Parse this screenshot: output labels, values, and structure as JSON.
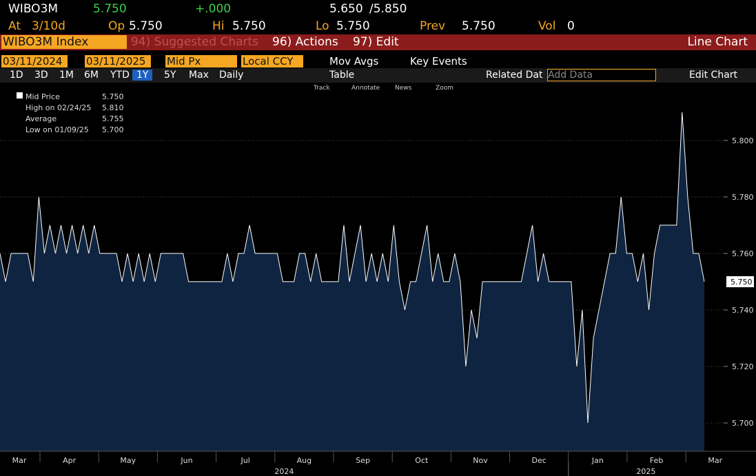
{
  "header": {
    "ticker": "WIBO3M",
    "last": "5.750",
    "change": "+.000",
    "bid": "5.650",
    "ask": "/5.850",
    "at_label": "At",
    "at_value": "3/10d",
    "open_label": "Op",
    "open": "5.750",
    "high_label": "Hi",
    "high": "5.750",
    "low_label": "Lo",
    "low": "5.750",
    "prev_label": "Prev",
    "prev": "5.750",
    "vol_label": "Vol",
    "vol": "0"
  },
  "toolbar": {
    "security": "WIBO3M Index",
    "suggested": "94) Suggested Charts",
    "actions": "96) Actions",
    "edit": "97) Edit",
    "chart_type": "Line Chart"
  },
  "controls": {
    "start_date": "03/11/2024",
    "end_date": "03/11/2025",
    "field": "Mid Px",
    "currency": "Local CCY",
    "mov_avgs": "Mov Avgs",
    "key_events": "Key Events",
    "ranges": [
      "1D",
      "3D",
      "1M",
      "6M",
      "YTD",
      "1Y",
      "5Y",
      "Max"
    ],
    "periodicity": "Daily",
    "table": "Table",
    "related": "Related Dat",
    "add_data": "Add Data",
    "edit_chart": "Edit Chart",
    "tools": [
      "Track",
      "Annotate",
      "News",
      "Zoom"
    ]
  },
  "chart_data": {
    "type": "line",
    "color": "#ffffff",
    "area_color": "#0f2440",
    "grid": true,
    "values": [
      5.76,
      5.75,
      5.76,
      5.76,
      5.76,
      5.76,
      5.75,
      5.78,
      5.76,
      5.77,
      5.76,
      5.77,
      5.76,
      5.77,
      5.76,
      5.77,
      5.76,
      5.77,
      5.76,
      5.76,
      5.76,
      5.76,
      5.75,
      5.76,
      5.75,
      5.76,
      5.75,
      5.76,
      5.75,
      5.76,
      5.76,
      5.76,
      5.76,
      5.76,
      5.75,
      5.75,
      5.75,
      5.75,
      5.75,
      5.75,
      5.75,
      5.76,
      5.75,
      5.76,
      5.76,
      5.77,
      5.76,
      5.76,
      5.76,
      5.76,
      5.76,
      5.75,
      5.75,
      5.75,
      5.76,
      5.76,
      5.75,
      5.76,
      5.75,
      5.75,
      5.75,
      5.75,
      5.77,
      5.75,
      5.76,
      5.77,
      5.75,
      5.76,
      5.75,
      5.76,
      5.75,
      5.77,
      5.75,
      5.74,
      5.75,
      5.75,
      5.76,
      5.77,
      5.75,
      5.76,
      5.75,
      5.75,
      5.76,
      5.75,
      5.72,
      5.74,
      5.73,
      5.75,
      5.75,
      5.75,
      5.75,
      5.75,
      5.75,
      5.75,
      5.75,
      5.76,
      5.77,
      5.75,
      5.76,
      5.75,
      5.75,
      5.75,
      5.75,
      5.75,
      5.72,
      5.74,
      5.7,
      5.73,
      5.74,
      5.75,
      5.76,
      5.76,
      5.78,
      5.76,
      5.76,
      5.75,
      5.76,
      5.74,
      5.76,
      5.77,
      5.77,
      5.77,
      5.77,
      5.81,
      5.78,
      5.76,
      5.76,
      5.75
    ],
    "ylim": [
      5.69,
      5.8185
    ],
    "yticks": [
      {
        "value": 5.7,
        "label": "5.700"
      },
      {
        "value": 5.72,
        "label": "5.720"
      },
      {
        "value": 5.74,
        "label": "5.740"
      },
      {
        "value": 5.76,
        "label": "5.760"
      },
      {
        "value": 5.78,
        "label": "5.780"
      },
      {
        "value": 5.8,
        "label": "5.800"
      }
    ],
    "last_value_label": "5.750",
    "month_labels": [
      "Mar",
      "Apr",
      "May",
      "Jun",
      "Jul",
      "Aug",
      "Sep",
      "Oct",
      "Nov",
      "Dec",
      "Jan",
      "Feb",
      "Mar"
    ],
    "year_labels": [
      "2024",
      "2025"
    ],
    "legend": [
      {
        "label": "Mid Price",
        "value": "5.750"
      },
      {
        "label": "High on 02/24/25",
        "value": "5.810"
      },
      {
        "label": "Average",
        "value": "5.755"
      },
      {
        "label": "Low on 01/09/25",
        "value": "5.700"
      }
    ]
  }
}
